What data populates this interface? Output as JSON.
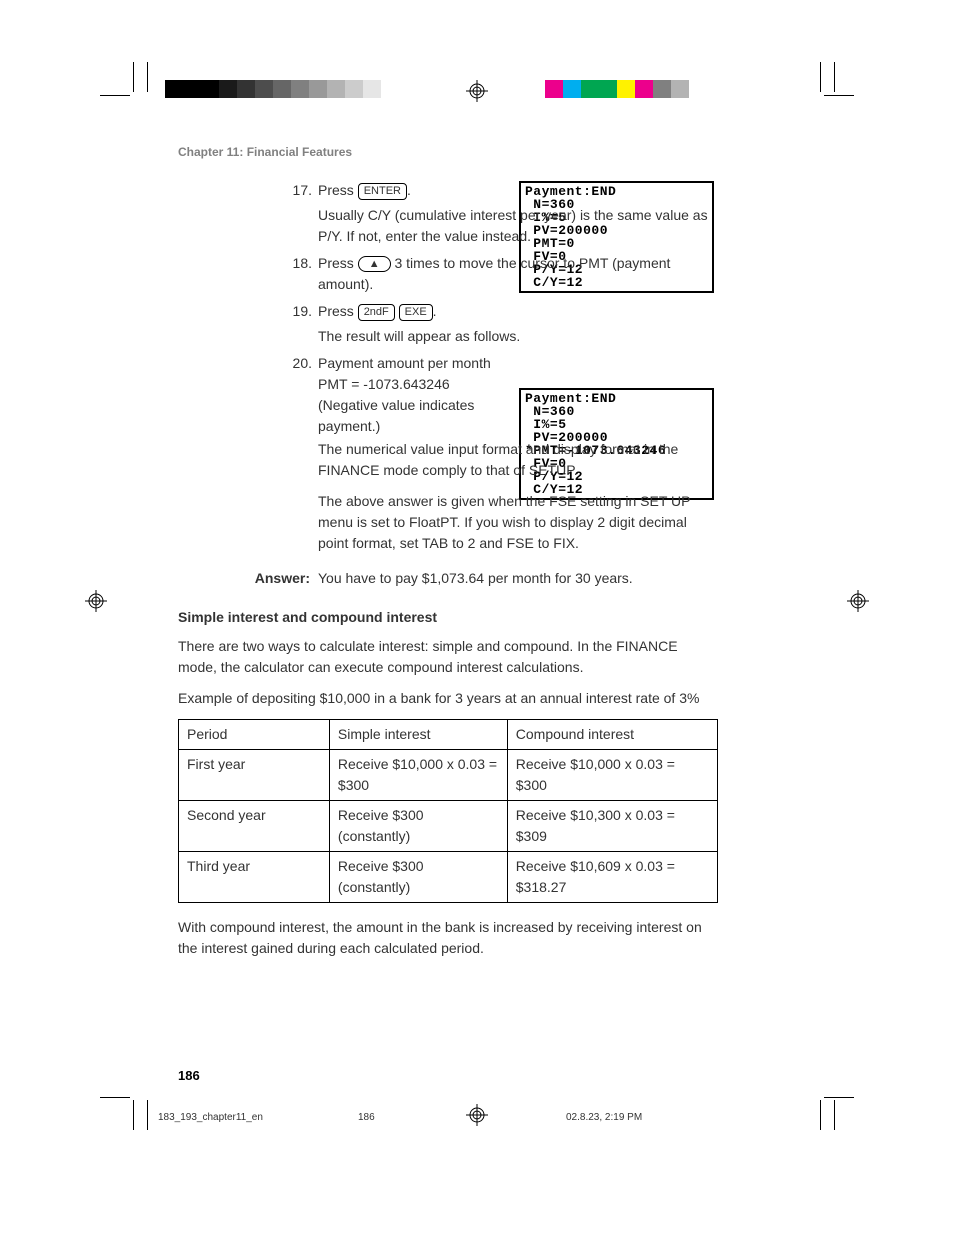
{
  "header": {
    "chapter": "Chapter 11: Financial Features"
  },
  "color_bars": {
    "left_gray": [
      "#000000",
      "#000000",
      "#000000",
      "#1a1a1a",
      "#333333",
      "#4d4d4d",
      "#666666",
      "#808080",
      "#999999",
      "#b3b3b3",
      "#cccccc",
      "#e6e6e6",
      "#ffffff"
    ],
    "right_color": [
      "#ec008c",
      "#00aeef",
      "#00a651",
      "#00a651",
      "#fff200",
      "#ec008c",
      "#808080",
      "#b3b3b3"
    ]
  },
  "steps": {
    "s17": {
      "num": "17.",
      "lead": "Press ",
      "key": "ENTER",
      "tail": ".",
      "body": "Usually C/Y (cumulative interest per year) is the same value as P/Y. If not, enter the value instead."
    },
    "s18": {
      "num": "18.",
      "lead": "Press ",
      "arrow": "▲",
      "tail": " 3 times to move the cursor to PMT (payment amount)."
    },
    "s19": {
      "num": "19.",
      "lead": "Press ",
      "key1": "2ndF",
      "key2": "EXE",
      "tail": ".",
      "body": "The result will appear as follows."
    },
    "s20": {
      "num": "20.",
      "l1": "Payment amount per month",
      "l2": "PMT = -1073.643246",
      "l3": "(Negative value indicates payment.)",
      "l4": "The numerical value input format and display format in the FINANCE mode comply to that of SETUP.",
      "l5": "The above answer is given when the FSE setting in SET UP menu is set to FloatPT. If you wish to display 2 digit decimal point format, set TAB to 2 and FSE to FIX."
    }
  },
  "calc_screens": {
    "screen1": "Payment:END\n N=360\n I%=5\n PV=200000\n PMT=0\n FV=0\n P/Y=12\n C/Y=12",
    "screen2": "Payment:END\n N=360\n I%=5\n PV=200000\n*PMT=-1073.643246\n FV=0\n P/Y=12\n C/Y=12"
  },
  "answer": {
    "label": "Answer:",
    "text": "You have to pay $1,073.64 per month for 30 years."
  },
  "section": {
    "heading": "Simple interest and compound interest",
    "p1": "There are two ways to calculate interest: simple and compound. In the FINANCE mode, the calculator can execute compound interest calculations.",
    "p2": "Example of depositing $10,000 in a bank for 3 years at an annual interest rate of 3%",
    "p3": "With compound interest, the amount in the bank is increased by receiving interest on the interest gained during each calculated period."
  },
  "table": {
    "columns": [
      "Period",
      "Simple interest",
      "Compound interest"
    ],
    "col_widths": [
      "28%",
      "33%",
      "39%"
    ],
    "rows": [
      [
        "First year",
        "Receive $10,000 x 0.03 = $300",
        "Receive $10,000 x 0.03 = $300"
      ],
      [
        "Second year",
        "Receive $300 (constantly)",
        "Receive $10,300 x 0.03 = $309"
      ],
      [
        "Third year",
        "Receive $300 (constantly)",
        "Receive $10,609 x 0.03 = $318.27"
      ]
    ]
  },
  "page_num": "186",
  "footer": {
    "filename": "183_193_chapter11_en",
    "page": "186",
    "timestamp": "02.8.23, 2:19 PM"
  }
}
